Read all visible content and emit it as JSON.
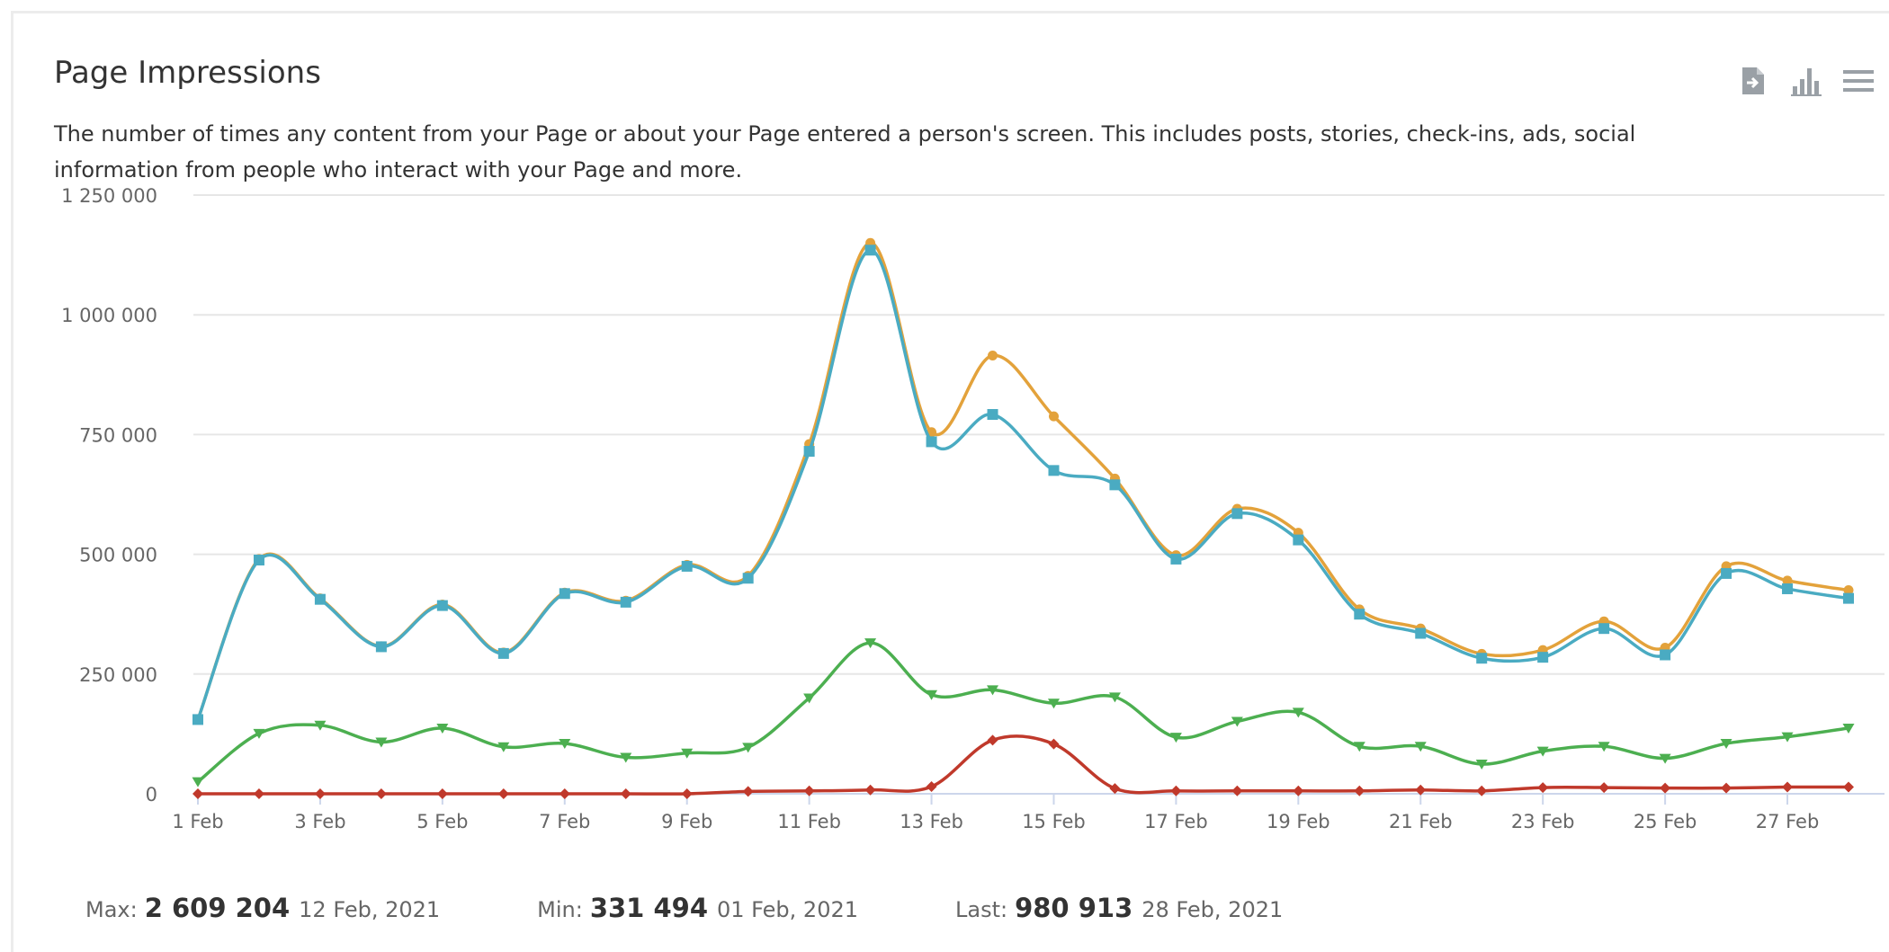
{
  "title": "Page Impressions",
  "description": "The number of times any content from your Page or about your Page entered a person's screen. This includes posts, stories, check-ins, ads, social information from people who interact with your Page and more.",
  "toolbar": {
    "icons": [
      "export-icon",
      "bar-chart-icon",
      "menu-icon"
    ],
    "color": "#9aa0a6"
  },
  "chart_data": {
    "type": "line",
    "title": "Page Impressions",
    "x_label_format": "D Feb",
    "x": [
      1,
      2,
      3,
      4,
      5,
      6,
      7,
      8,
      9,
      10,
      11,
      12,
      13,
      14,
      15,
      16,
      17,
      18,
      19,
      20,
      21,
      22,
      23,
      24,
      25,
      26,
      27,
      28
    ],
    "x_ticks": [
      "1 Feb",
      "3 Feb",
      "5 Feb",
      "7 Feb",
      "9 Feb",
      "11 Feb",
      "13 Feb",
      "15 Feb",
      "17 Feb",
      "19 Feb",
      "21 Feb",
      "23 Feb",
      "25 Feb",
      "27 Feb"
    ],
    "x_tick_days": [
      1,
      3,
      5,
      7,
      9,
      11,
      13,
      15,
      17,
      19,
      21,
      23,
      25,
      27
    ],
    "ylim": [
      0,
      1250000
    ],
    "y_ticks": [
      0,
      250000,
      500000,
      750000,
      1000000,
      1250000
    ],
    "y_tick_labels": [
      "0",
      "250 000",
      "500 000",
      "750 000",
      "1 000 000",
      "1 250 000"
    ],
    "grid": true,
    "legend": "none",
    "series": [
      {
        "color": "#e3a23b",
        "marker": "circle",
        "values": [
          155000,
          490000,
          408000,
          308000,
          395000,
          295000,
          420000,
          403000,
          478000,
          455000,
          730000,
          1150000,
          755000,
          915000,
          788000,
          658000,
          498000,
          595000,
          545000,
          385000,
          345000,
          292000,
          300000,
          360000,
          305000,
          475000,
          445000,
          425000
        ]
      },
      {
        "color": "#4aabc2",
        "marker": "square",
        "values": [
          155000,
          488000,
          406000,
          307000,
          393000,
          293000,
          418000,
          400000,
          475000,
          450000,
          715000,
          1135000,
          735000,
          792000,
          675000,
          645000,
          490000,
          585000,
          530000,
          375000,
          335000,
          283000,
          285000,
          345000,
          290000,
          460000,
          428000,
          408000
        ]
      },
      {
        "color": "#4caf50",
        "marker": "triangle-down",
        "values": [
          25000,
          126000,
          143000,
          108000,
          137000,
          98000,
          105000,
          76000,
          85000,
          97000,
          200000,
          315000,
          207000,
          217000,
          189000,
          202000,
          118000,
          151000,
          170000,
          99000,
          99000,
          62000,
          89000,
          99000,
          74000,
          105000,
          119000,
          137000
        ]
      },
      {
        "color": "#c0392b",
        "marker": "diamond",
        "values": [
          0,
          0,
          0,
          0,
          0,
          0,
          0,
          0,
          0,
          5000,
          6000,
          8000,
          15000,
          112000,
          104000,
          11000,
          6000,
          6000,
          6000,
          6000,
          8000,
          6000,
          13000,
          13000,
          12000,
          12000,
          14000,
          14000
        ]
      }
    ]
  },
  "stats": {
    "max": {
      "label": "Max:",
      "value": "2 609 204",
      "date": "12 Feb, 2021"
    },
    "min": {
      "label": "Min:",
      "value": "331 494",
      "date": "01 Feb, 2021"
    },
    "last": {
      "label": "Last:",
      "value": "980 913",
      "date": "28 Feb, 2021"
    }
  }
}
